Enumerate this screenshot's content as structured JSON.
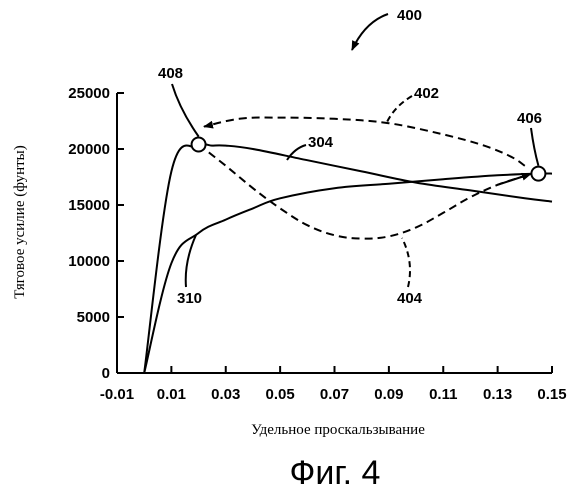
{
  "figure_number": "400",
  "figure_caption": "Фиг. 4",
  "chart_data": {
    "type": "line",
    "xlabel": "Удельное проскальзывание",
    "ylabel": "Тяговое усилие (фунты)",
    "xlim": [
      -0.01,
      0.15
    ],
    "ylim": [
      0,
      25000
    ],
    "x_ticks": [
      -0.01,
      0.01,
      0.03,
      0.05,
      0.07,
      0.09,
      0.11,
      0.13,
      0.15
    ],
    "x_tick_labels": [
      "-0.01",
      "0.01",
      "0.03",
      "0.05",
      "0.07",
      "0.09",
      "0.11",
      "0.13",
      "0.15"
    ],
    "y_ticks": [
      0,
      5000,
      10000,
      15000,
      20000,
      25000
    ],
    "y_tick_labels": [
      "0",
      "5000",
      "10000",
      "15000",
      "20000",
      "25000"
    ],
    "grid": false,
    "legend": "none",
    "series": [
      {
        "label": "304",
        "style": "solid",
        "x": [
          0.0,
          0.01,
          0.02,
          0.025,
          0.03,
          0.04,
          0.06,
          0.08,
          0.1,
          0.12,
          0.14,
          0.15
        ],
        "y": [
          0,
          18000,
          20200,
          20300,
          20300,
          20000,
          19000,
          18000,
          17000,
          16300,
          15600,
          15300
        ]
      },
      {
        "label": "310",
        "style": "solid",
        "x": [
          0.0,
          0.01,
          0.02,
          0.03,
          0.04,
          0.05,
          0.07,
          0.09,
          0.11,
          0.13,
          0.145,
          0.15
        ],
        "y": [
          0,
          9800,
          12500,
          13700,
          14700,
          15600,
          16500,
          16900,
          17300,
          17650,
          17800,
          17800
        ]
      },
      {
        "label": "404",
        "style": "dashed",
        "x": [
          0.02,
          0.03,
          0.04,
          0.05,
          0.06,
          0.07,
          0.08,
          0.09,
          0.1,
          0.11,
          0.12,
          0.13,
          0.14
        ],
        "y": [
          20400,
          18500,
          16500,
          14700,
          13200,
          12300,
          12000,
          12200,
          13000,
          14300,
          15700,
          16800,
          17600
        ]
      }
    ],
    "arrows": [
      {
        "label": "402",
        "style": "dashed",
        "from": [
          0.145,
          17800
        ],
        "to": [
          0.022,
          22000
        ],
        "x": [
          0.14,
          0.135,
          0.125,
          0.11,
          0.09,
          0.07,
          0.05,
          0.035,
          0.022
        ],
        "y": [
          18500,
          19300,
          20300,
          21300,
          22300,
          22700,
          22800,
          22700,
          22000
        ]
      }
    ],
    "markers": [
      {
        "label": "408",
        "x": 0.02,
        "y": 20400
      },
      {
        "label": "406",
        "x": 0.145,
        "y": 17800
      }
    ]
  }
}
